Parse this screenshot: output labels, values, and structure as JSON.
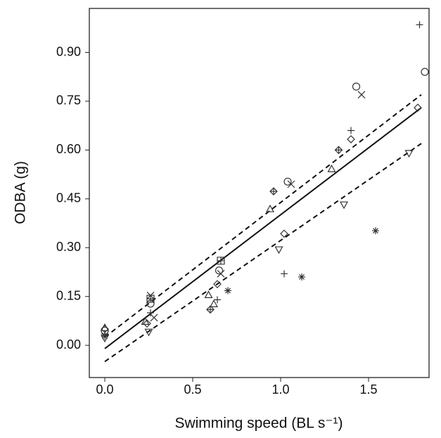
{
  "chart_data": {
    "type": "scatter",
    "xlabel": "Swimming speed (BL s⁻¹)",
    "ylabel": "ODBA (g)",
    "xlim": [
      -0.088,
      1.844
    ],
    "ylim": [
      -0.099,
      1.035
    ],
    "xticks": [
      {
        "value": 0,
        "label": "0.0"
      },
      0.5,
      {
        "value": 1,
        "label": "1.0"
      },
      1.5
    ],
    "yticks": [
      {
        "value": 0,
        "label": "0.00"
      },
      0.15,
      {
        "value": 0.3,
        "label": "0.30"
      },
      0.45,
      {
        "value": 0.6,
        "label": "0.60"
      },
      0.75,
      {
        "value": 0.9,
        "label": "0.90"
      }
    ],
    "color": "#333333",
    "series": [
      {
        "marker": "plus",
        "x": [
          1.02,
          1.79,
          1.4,
          0.64,
          0.26,
          0.0
        ],
        "values": [
          0.22,
          0.985,
          0.66,
          0.14,
          0.1,
          0.035
        ]
      },
      {
        "marker": "cross",
        "x": [
          1.46,
          0.26,
          0.66,
          1.06,
          0.28
        ],
        "values": [
          0.77,
          0.153,
          0.22,
          0.495,
          0.085
        ]
      },
      {
        "marker": "circle",
        "x": [
          1.82,
          1.43,
          1.04,
          0.65,
          0.26,
          0.0
        ],
        "values": [
          0.84,
          0.795,
          0.503,
          0.23,
          0.128,
          0.045
        ]
      },
      {
        "marker": "diamond",
        "x": [
          1.78,
          1.4,
          1.02,
          0.64,
          0.24,
          0.0
        ],
        "values": [
          0.73,
          0.633,
          0.343,
          0.188,
          0.067,
          0.05
        ]
      },
      {
        "marker": "diamond-plus",
        "x": [
          1.33,
          0.96,
          0.6
        ],
        "values": [
          0.6,
          0.473,
          0.11
        ]
      },
      {
        "marker": "triangle-up",
        "x": [
          1.29,
          0.94,
          0.59,
          0.62,
          0.23,
          0.0
        ],
        "values": [
          0.542,
          0.419,
          0.155,
          0.127,
          0.073,
          0.054
        ]
      },
      {
        "marker": "triangle-down",
        "x": [
          1.73,
          1.36,
          0.99,
          0.25,
          0.0
        ],
        "values": [
          0.59,
          0.432,
          0.294,
          0.041,
          0.022
        ]
      },
      {
        "marker": "asterisk",
        "x": [
          1.54,
          1.12,
          0.7,
          0.0
        ],
        "values": [
          0.352,
          0.21,
          0.168,
          0.028
        ]
      },
      {
        "marker": "square-plus",
        "x": [
          0.66,
          0.26
        ],
        "values": [
          0.26,
          0.143
        ]
      }
    ],
    "lines": [
      {
        "style": "solid",
        "x": [
          0,
          1.8
        ],
        "values": [
          -0.01,
          0.73
        ]
      },
      {
        "style": "dashed",
        "x": [
          0,
          1.8
        ],
        "values": [
          0.025,
          0.77
        ]
      },
      {
        "style": "dashed",
        "x": [
          0,
          1.8
        ],
        "values": [
          -0.05,
          0.62
        ]
      }
    ]
  }
}
